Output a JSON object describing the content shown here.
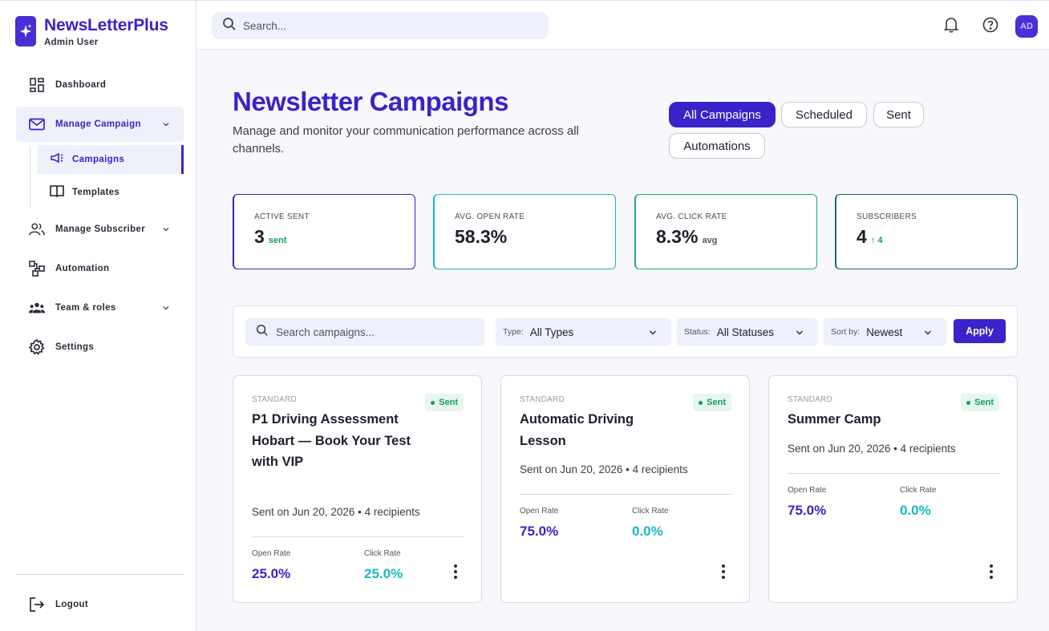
{
  "brand": {
    "name": "NewsLetterPlus",
    "user": "Admin User"
  },
  "sidebar": {
    "items": [
      {
        "label": "Dashboard",
        "icon": "dashboard-icon"
      },
      {
        "label": "Manage Campaign",
        "icon": "mail-icon"
      },
      {
        "label": "Manage Subscriber",
        "icon": "users-icon"
      },
      {
        "label": "Automation",
        "icon": "automation-icon"
      },
      {
        "label": "Team & roles",
        "icon": "team-icon"
      },
      {
        "label": "Settings",
        "icon": "gear-icon"
      }
    ],
    "sub_items": [
      {
        "label": "Campaigns",
        "icon": "megaphone-icon"
      },
      {
        "label": "Templates",
        "icon": "book-icon"
      }
    ],
    "logout": "Logout"
  },
  "topbar": {
    "search_placeholder": "Search...",
    "avatar": "AD"
  },
  "header": {
    "title": "Newsletter Campaigns",
    "subtitle": "Manage and monitor your communication performance across all channels.",
    "tabs": [
      "All Campaigns",
      "Scheduled",
      "Sent",
      "Automations"
    ]
  },
  "stats": [
    {
      "label": "ACTIVE SENT",
      "value": "3",
      "unit": "sent",
      "unit_color": "#14a05a",
      "border": "#3a23c9"
    },
    {
      "label": "AVG. OPEN RATE",
      "value": "58.3%",
      "unit": "",
      "unit_color": "#555",
      "border": "#18b7c4"
    },
    {
      "label": "AVG. CLICK RATE",
      "value": "8.3%",
      "unit": "avg",
      "unit_color": "#555560",
      "border": "#1aa98a"
    },
    {
      "label": "SUBSCRIBERS",
      "value": "4",
      "unit": "↑ 4",
      "unit_color": "#14a05a",
      "border": "#0f6e6e"
    }
  ],
  "filters": {
    "search_placeholder": "Search campaigns...",
    "type_label": "Type:",
    "type_value": "All Types",
    "status_label": "Status:",
    "status_value": "All Statuses",
    "sort_label": "Sort by:",
    "sort_value": "Newest",
    "apply": "Apply"
  },
  "campaigns": [
    {
      "type": "STANDARD",
      "status": "Sent",
      "title": "P1 Driving Assessment Hobart — Book Your Test with VIP",
      "meta": "Sent on Jun 20, 2026 • 4 recipients",
      "open_label": "Open Rate",
      "open": "25.0%",
      "click_label": "Click Rate",
      "click": "25.0%"
    },
    {
      "type": "STANDARD",
      "status": "Sent",
      "title": "Automatic Driving Lesson",
      "meta": "Sent on Jun 20, 2026 • 4 recipients",
      "open_label": "Open Rate",
      "open": "75.0%",
      "click_label": "Click Rate",
      "click": "0.0%"
    },
    {
      "type": "STANDARD",
      "status": "Sent",
      "title": "Summer Camp",
      "meta": "Sent on Jun 20, 2026 • 4 recipients",
      "open_label": "Open Rate",
      "open": "75.0%",
      "click_label": "Click Rate",
      "click": "0.0%"
    }
  ],
  "colors": {
    "accent": "#3a23c9",
    "teal": "#18b7c4",
    "success": "#14a05a"
  }
}
